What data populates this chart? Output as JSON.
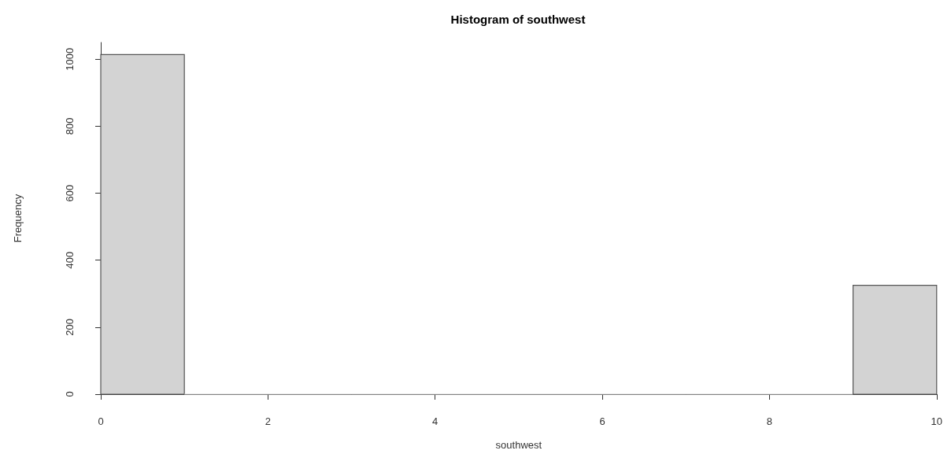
{
  "chart_data": {
    "type": "histogram",
    "title": "Histogram of southwest",
    "xlabel": "southwest",
    "ylabel": "Frequency",
    "bins": [
      0,
      1,
      2,
      3,
      4,
      5,
      6,
      7,
      8,
      9,
      10
    ],
    "values": [
      1014,
      0,
      0,
      0,
      0,
      0,
      0,
      0,
      0,
      325
    ],
    "color": "#d3d3d3",
    "xlim": [
      0,
      10
    ],
    "xticks": [
      0,
      2,
      4,
      6,
      8,
      10
    ],
    "ylim": [
      0,
      1050
    ],
    "yticks": [
      0,
      200,
      400,
      600,
      800,
      1000
    ],
    "grid": false
  }
}
